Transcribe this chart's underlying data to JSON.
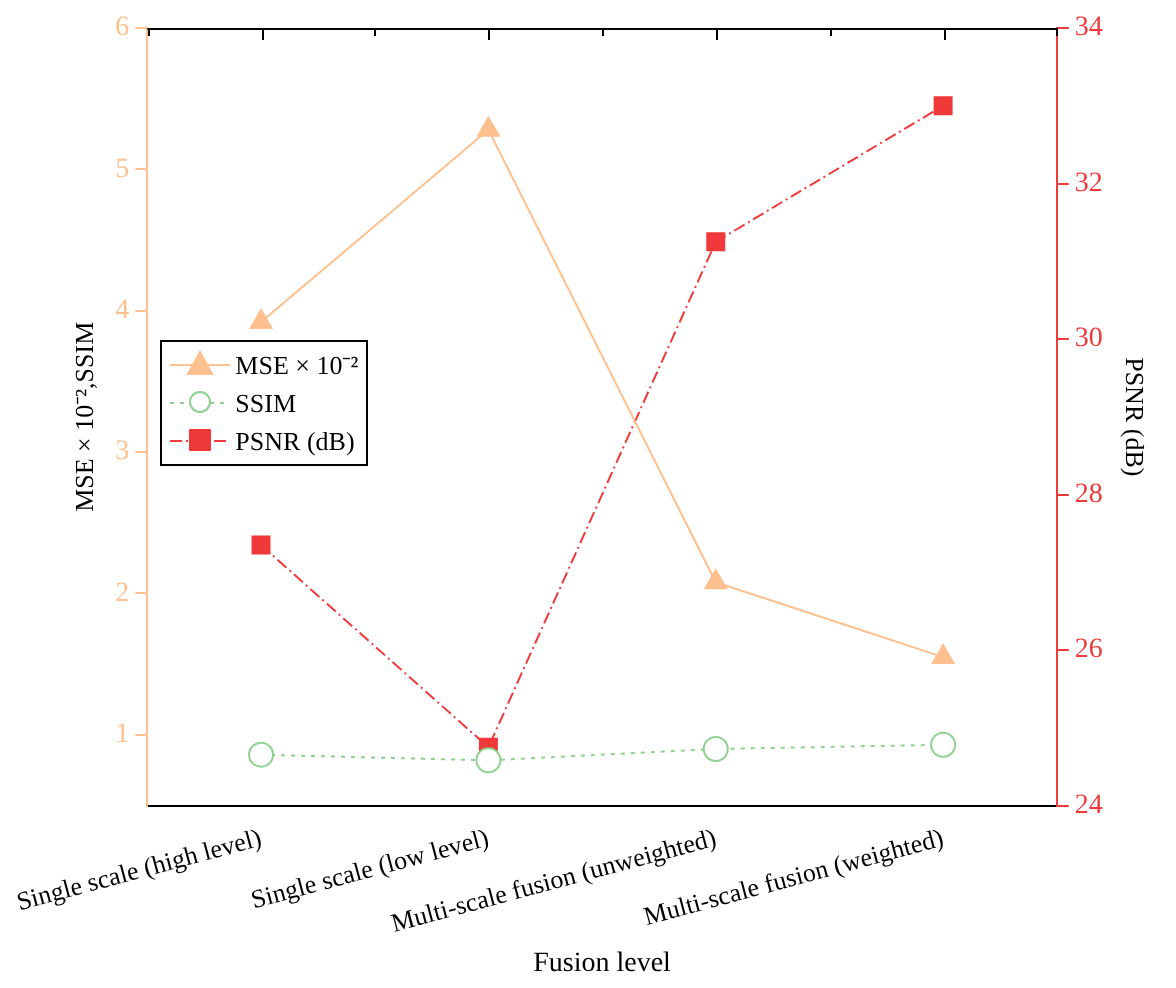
{
  "chart_data": {
    "type": "line",
    "xlabel": "Fusion level",
    "ylabel": "MSE × 10⁻²,SSIM",
    "y2label": "PSNR (dB)",
    "categories": [
      "Single scale (high level)",
      "Single scale (low level)",
      "Multi-scale fusion (unweighted)",
      "Multi-scale fusion (weighted)"
    ],
    "series": [
      {
        "name": "MSE × 10⁻²",
        "color": "#fdc08e",
        "values": [
          3.92,
          5.28,
          2.08,
          1.55
        ],
        "marker": "triangle",
        "line_style": "solid"
      },
      {
        "name": "SSIM",
        "color": "#8fd18f",
        "values": [
          0.86,
          0.82,
          0.9,
          0.93
        ],
        "marker": "circle",
        "line_style": "dotted"
      },
      {
        "name": "PSNR (dB)",
        "color": "#f0393b",
        "values": [
          27.35,
          24.75,
          31.25,
          33.0
        ],
        "marker": "square",
        "line_style": "dashdot",
        "axis": "y2"
      }
    ],
    "ylim": [
      0.5,
      6
    ],
    "yticks": [
      1,
      2,
      3,
      4,
      5,
      6
    ],
    "y2lim": [
      24,
      34
    ],
    "y2ticks": [
      24,
      26,
      28,
      30,
      32,
      34
    ],
    "grid": false,
    "legend": "left"
  }
}
